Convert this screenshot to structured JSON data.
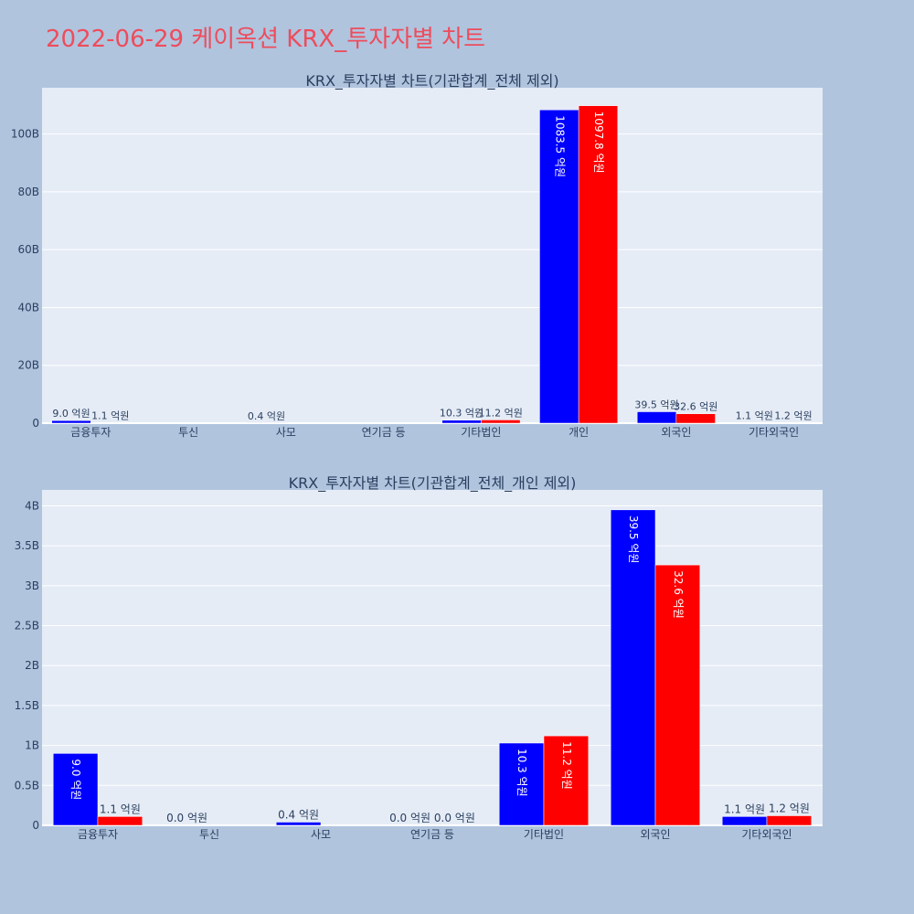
{
  "page_title": "2022-06-29 케이옥션 KRX_투자자별 차트",
  "colors": {
    "background": "#b0c4de",
    "plot_bg": "#e5ecf6",
    "title": "#ee4c5c",
    "series_buy": "#0000ff",
    "series_sell": "#ff0000",
    "text": "#2a3f5f"
  },
  "chart_data": [
    {
      "type": "bar",
      "title": "KRX_투자자별 차트(기관합계_전체 제외)",
      "categories": [
        "금융투자",
        "투신",
        "사모",
        "연기금 등",
        "기타법인",
        "개인",
        "외국인",
        "기타외국인"
      ],
      "series": [
        {
          "values": [
            900000000,
            null,
            40000000,
            null,
            1030000000,
            108350000000,
            3950000000,
            110000000
          ],
          "labels": [
            "9.0 억원",
            "",
            "0.4 억원",
            "",
            "10.3 억원",
            "1083.5 억원",
            "39.5 억원",
            "1.1 억원"
          ]
        },
        {
          "values": [
            110000000,
            null,
            null,
            null,
            1120000000,
            109780000000,
            3260000000,
            120000000
          ],
          "labels": [
            "1.1 억원",
            "",
            "",
            "",
            "11.2 억원",
            "1097.8 억원",
            "32.6 억원",
            "1.2 억원"
          ]
        }
      ],
      "y_ticks": [
        0,
        20000000000,
        40000000000,
        60000000000,
        80000000000,
        100000000000
      ],
      "y_tick_labels": [
        "0",
        "20B",
        "40B",
        "60B",
        "80B",
        "100B"
      ],
      "ylim": [
        0,
        116000000000
      ],
      "grid": true
    },
    {
      "type": "bar",
      "title": "KRX_투자자별 차트(기관합계_전체_개인 제외)",
      "categories": [
        "금융투자",
        "투신",
        "사모",
        "연기금 등",
        "기타법인",
        "외국인",
        "기타외국인"
      ],
      "series": [
        {
          "values": [
            900000000,
            0,
            40000000,
            0,
            1030000000,
            3950000000,
            110000000
          ],
          "labels": [
            "9.0 억원",
            "0.0 억원",
            "0.4 억원",
            "0.0 억원",
            "10.3 억원",
            "39.5 억원",
            "1.1 억원"
          ]
        },
        {
          "values": [
            110000000,
            null,
            null,
            0,
            1120000000,
            3260000000,
            120000000
          ],
          "labels": [
            "1.1 억원",
            "",
            "",
            "0.0 억원",
            "11.2 억원",
            "32.6 억원",
            "1.2 억원"
          ]
        }
      ],
      "y_ticks": [
        0,
        500000000,
        1000000000,
        1500000000,
        2000000000,
        2500000000,
        3000000000,
        3500000000,
        4000000000
      ],
      "y_tick_labels": [
        "0",
        "0.5B",
        "1B",
        "1.5B",
        "2B",
        "2.5B",
        "3B",
        "3.5B",
        "4B"
      ],
      "ylim": [
        0,
        4200000000
      ],
      "grid": true
    }
  ]
}
